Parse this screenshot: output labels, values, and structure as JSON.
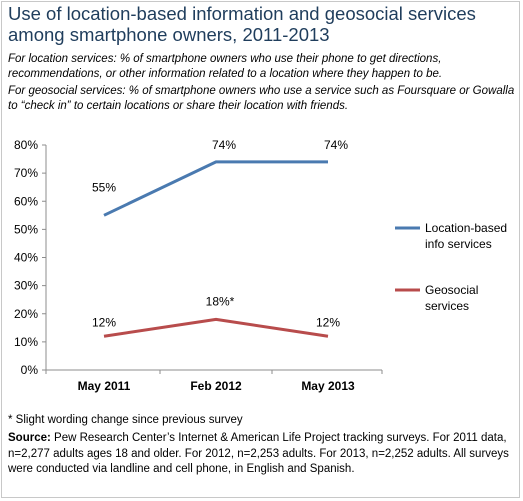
{
  "title": "Use of location-based information and geosocial services among smartphone owners, 2011-2013",
  "subtitle_line1": "For location services: % of smartphone owners who use their phone to get directions, recommendations, or other information related to a location where they happen to be.",
  "subtitle_line2": "For geosocial services: % of smartphone owners who use a service such as Foursquare or Gowalla to “check in” to certain locations or share their location with friends.",
  "footnote": "* Slight wording change since previous survey",
  "source_label": "Source:",
  "source_text": " Pew Research Center’s Internet & American Life Project tracking surveys. For 2011 data, n=2,277 adults ages 18 and older. For 2012, n=2,253 adults. For 2013, n=2,252 adults. All surveys were conducted via landline and cell phone, in English and Spanish.",
  "colors": {
    "location": "#4a7ab0",
    "geosocial": "#b84c4c",
    "title": "#1f3d5c"
  },
  "chart_data": {
    "type": "line",
    "categories": [
      "May 2011",
      "Feb 2012",
      "May 2013"
    ],
    "ylim": [
      0,
      80
    ],
    "yticks": [
      "0%",
      "10%",
      "20%",
      "30%",
      "40%",
      "50%",
      "60%",
      "70%",
      "80%"
    ],
    "grid": false,
    "legend_position": "right",
    "series": [
      {
        "name": "Location-based info services",
        "legend_lines": [
          "Location-based",
          "info services"
        ],
        "values": [
          55,
          74,
          74
        ],
        "labels": [
          "55%",
          "74%",
          "74%"
        ],
        "color": "#4a7ab0"
      },
      {
        "name": "Geosocial services",
        "legend_lines": [
          "Geosocial",
          "services"
        ],
        "values": [
          12,
          18,
          12
        ],
        "labels": [
          "12%",
          "18%*",
          "12%"
        ],
        "color": "#b84c4c"
      }
    ]
  }
}
